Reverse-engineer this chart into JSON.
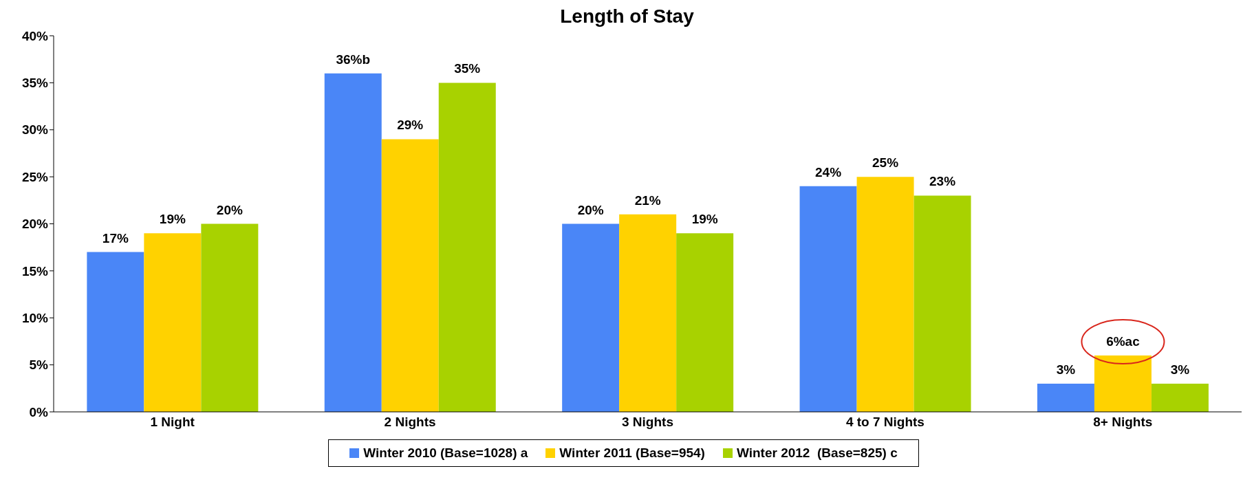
{
  "chart_data": {
    "type": "bar",
    "title": "Length of Stay",
    "categories": [
      "1 Night",
      "2 Nights",
      "3 Nights",
      "4 to 7 Nights",
      "8+ Nights"
    ],
    "series": [
      {
        "name": "Winter 2010 (Base=1028) a",
        "color": "#4a86f7",
        "values": [
          17,
          36,
          20,
          24,
          3
        ],
        "value_labels": [
          "17%",
          "36%b",
          "20%",
          "24%",
          "3%"
        ]
      },
      {
        "name": "Winter 2011 (Base=954)",
        "color": "#ffd200",
        "values": [
          19,
          29,
          21,
          25,
          6
        ],
        "value_labels": [
          "19%",
          "29%",
          "21%",
          "25%",
          "6%ac"
        ]
      },
      {
        "name": "Winter 2012  (Base=825) c",
        "color": "#a8d200",
        "values": [
          20,
          35,
          19,
          23,
          3
        ],
        "value_labels": [
          "20%",
          "35%",
          "19%",
          "23%",
          "3%"
        ]
      }
    ],
    "ylim": [
      0,
      40
    ],
    "yticks": [
      {
        "value": 0,
        "label": "0%"
      },
      {
        "value": 5,
        "label": "5%"
      },
      {
        "value": 10,
        "label": "10%"
      },
      {
        "value": 15,
        "label": "15%"
      },
      {
        "value": 20,
        "label": "20%"
      },
      {
        "value": 25,
        "label": "25%"
      },
      {
        "value": 30,
        "label": "30%"
      },
      {
        "value": 35,
        "label": "35%"
      },
      {
        "value": 40,
        "label": "40%"
      }
    ],
    "grid": false,
    "legend": "bottom"
  }
}
